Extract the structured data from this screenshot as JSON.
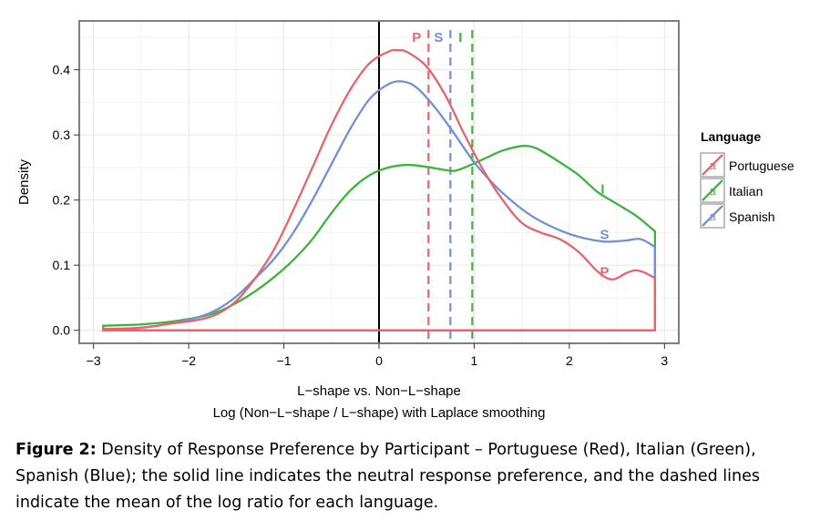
{
  "chart_data": {
    "type": "line",
    "xlabel": "L−shape vs. Non−L−shape",
    "xlabel2": "Log (Non−L−shape / L−shape) with Laplace smoothing",
    "ylabel": "Density",
    "xlim": [
      -3.15,
      3.15
    ],
    "ylim": [
      -0.02,
      0.475
    ],
    "x_ticks": [
      -3,
      -2,
      -1,
      0,
      1,
      2,
      3
    ],
    "x_tick_labels": [
      "−3",
      "−2",
      "−1",
      "0",
      "1",
      "2",
      "3"
    ],
    "y_ticks": [
      0.0,
      0.1,
      0.2,
      0.3,
      0.4
    ],
    "y_tick_labels": [
      "0.0",
      "0.1",
      "0.2",
      "0.3",
      "0.4"
    ],
    "grid": true,
    "legend": {
      "title": "Language",
      "placement": "right",
      "items": [
        {
          "key": "portuguese",
          "label": "Portuguese",
          "glyph": "a"
        },
        {
          "key": "italian",
          "label": "Italian",
          "glyph": "a"
        },
        {
          "key": "spanish",
          "label": "Spanish",
          "glyph": "a"
        }
      ]
    },
    "neutral_line_x": 0,
    "series": [
      {
        "key": "portuguese",
        "name": "Portuguese",
        "color": "#e8636b",
        "mean": 0.52,
        "mean_label": "P",
        "end_label": "P",
        "end_label_at": [
          2.37,
          0.09
        ],
        "x": [
          -2.9,
          -2.5,
          -2.2,
          -1.9,
          -1.7,
          -1.5,
          -1.3,
          -1.1,
          -0.9,
          -0.7,
          -0.5,
          -0.3,
          -0.1,
          0.1,
          0.2,
          0.3,
          0.5,
          0.7,
          0.9,
          1.1,
          1.3,
          1.5,
          1.7,
          1.9,
          2.1,
          2.3,
          2.45,
          2.6,
          2.7,
          2.8,
          2.9
        ],
        "y": [
          0.002,
          0.004,
          0.01,
          0.016,
          0.025,
          0.045,
          0.08,
          0.125,
          0.185,
          0.25,
          0.315,
          0.37,
          0.41,
          0.428,
          0.43,
          0.427,
          0.405,
          0.36,
          0.3,
          0.245,
          0.2,
          0.165,
          0.15,
          0.14,
          0.12,
          0.09,
          0.078,
          0.088,
          0.092,
          0.088,
          0.08
        ]
      },
      {
        "key": "italian",
        "name": "Italian",
        "color": "#3cb33d",
        "mean": 0.98,
        "mean_label": "I",
        "end_label": "I",
        "end_label_at": [
          2.35,
          0.217
        ],
        "x": [
          -2.9,
          -2.5,
          -2.2,
          -1.9,
          -1.7,
          -1.5,
          -1.3,
          -1.1,
          -0.9,
          -0.7,
          -0.5,
          -0.3,
          -0.1,
          0.1,
          0.3,
          0.5,
          0.7,
          0.8,
          0.9,
          1.1,
          1.3,
          1.5,
          1.6,
          1.7,
          1.9,
          2.1,
          2.3,
          2.5,
          2.7,
          2.9
        ],
        "y": [
          0.007,
          0.009,
          0.013,
          0.02,
          0.028,
          0.042,
          0.06,
          0.082,
          0.108,
          0.14,
          0.18,
          0.215,
          0.238,
          0.25,
          0.254,
          0.251,
          0.246,
          0.245,
          0.25,
          0.263,
          0.276,
          0.283,
          0.282,
          0.276,
          0.258,
          0.238,
          0.212,
          0.194,
          0.176,
          0.152
        ]
      },
      {
        "key": "spanish",
        "name": "Spanish",
        "color": "#7291d2",
        "mean": 0.75,
        "mean_label": "S",
        "end_label": "S",
        "end_label_at": [
          2.37,
          0.147
        ],
        "x": [
          -2.9,
          -2.5,
          -2.2,
          -1.9,
          -1.7,
          -1.5,
          -1.3,
          -1.1,
          -0.9,
          -0.7,
          -0.5,
          -0.3,
          -0.1,
          0.1,
          0.25,
          0.4,
          0.6,
          0.8,
          1.0,
          1.2,
          1.4,
          1.6,
          1.8,
          2.0,
          2.2,
          2.4,
          2.6,
          2.75,
          2.9
        ],
        "y": [
          0.001,
          0.004,
          0.01,
          0.02,
          0.032,
          0.052,
          0.08,
          0.11,
          0.15,
          0.2,
          0.255,
          0.31,
          0.355,
          0.378,
          0.382,
          0.372,
          0.34,
          0.3,
          0.258,
          0.225,
          0.198,
          0.176,
          0.16,
          0.148,
          0.14,
          0.136,
          0.138,
          0.14,
          0.128
        ]
      }
    ]
  },
  "caption": {
    "label": "Figure 2:",
    "text": " Density of Response Preference by Participant – Portuguese (Red), Italian (Green), Spanish (Blue); the solid line indicates the neutral response preference, and the dashed lines indicate the mean of the log ratio for each language."
  }
}
